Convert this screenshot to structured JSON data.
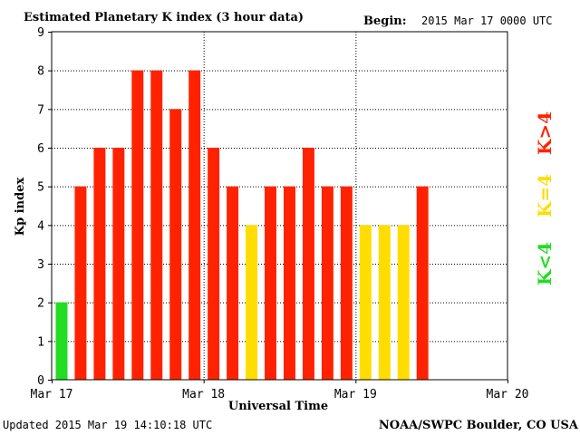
{
  "header": {
    "title": "Estimated Planetary K index (3 hour data)",
    "begin_label": "Begin:",
    "begin_value": "2015 Mar 17 0000 UTC"
  },
  "footer": {
    "updated": "Updated 2015 Mar 19 14:10:18 UTC",
    "source": "NOAA/SWPC Boulder, CO USA"
  },
  "colors": {
    "high": "#ff2200",
    "equal": "#ffdd00",
    "low": "#22dd22",
    "grid": "#000000"
  },
  "legend": {
    "high": "K>4",
    "equal": "K=4",
    "low": "K<4"
  },
  "chart_data": {
    "type": "bar",
    "title": "Estimated Planetary K index (3 hour data)",
    "xlabel": "Universal Time",
    "ylabel": "Kp index",
    "ylim": [
      0,
      9
    ],
    "yticks": [
      "0",
      "1",
      "2",
      "3",
      "4",
      "5",
      "6",
      "7",
      "8",
      "9"
    ],
    "xticks": [
      "Mar 17",
      "Mar 18",
      "Mar 19",
      "Mar 20"
    ],
    "x_days": 3,
    "bins_per_day": 8,
    "grid": true,
    "values": [
      2,
      5,
      6,
      6,
      8,
      8,
      7,
      8,
      6,
      5,
      4,
      5,
      5,
      6,
      5,
      5,
      4,
      4,
      4,
      5
    ]
  }
}
